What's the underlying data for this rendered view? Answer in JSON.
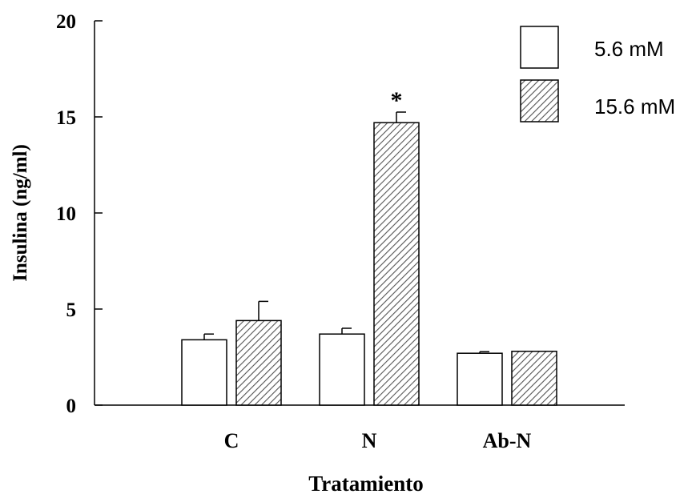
{
  "chart_data": {
    "type": "bar",
    "xlabel": "Tratamiento",
    "ylabel": "Insulina (ng/ml)",
    "ylim": [
      0,
      20
    ],
    "yticks": [
      "0",
      "5",
      "10",
      "15",
      "20"
    ],
    "categories": [
      "C",
      "N",
      "Ab-N"
    ],
    "series": [
      {
        "name": "5.6 mM",
        "values": [
          3.4,
          3.7,
          2.7
        ],
        "errors": [
          0.3,
          0.3,
          0.08
        ],
        "fill": "white"
      },
      {
        "name": "15.6 mM",
        "values": [
          4.4,
          14.7,
          2.8
        ],
        "errors": [
          1.0,
          0.55,
          0.0
        ],
        "fill": "hatched"
      }
    ],
    "annotations": [
      {
        "text": "*",
        "category": "N",
        "series": "15.6 mM"
      }
    ],
    "legend_position": "top-right",
    "grid": false,
    "colors": {
      "bar_stroke": "#000000",
      "hatch": "#555555",
      "background": "#ffffff"
    }
  }
}
